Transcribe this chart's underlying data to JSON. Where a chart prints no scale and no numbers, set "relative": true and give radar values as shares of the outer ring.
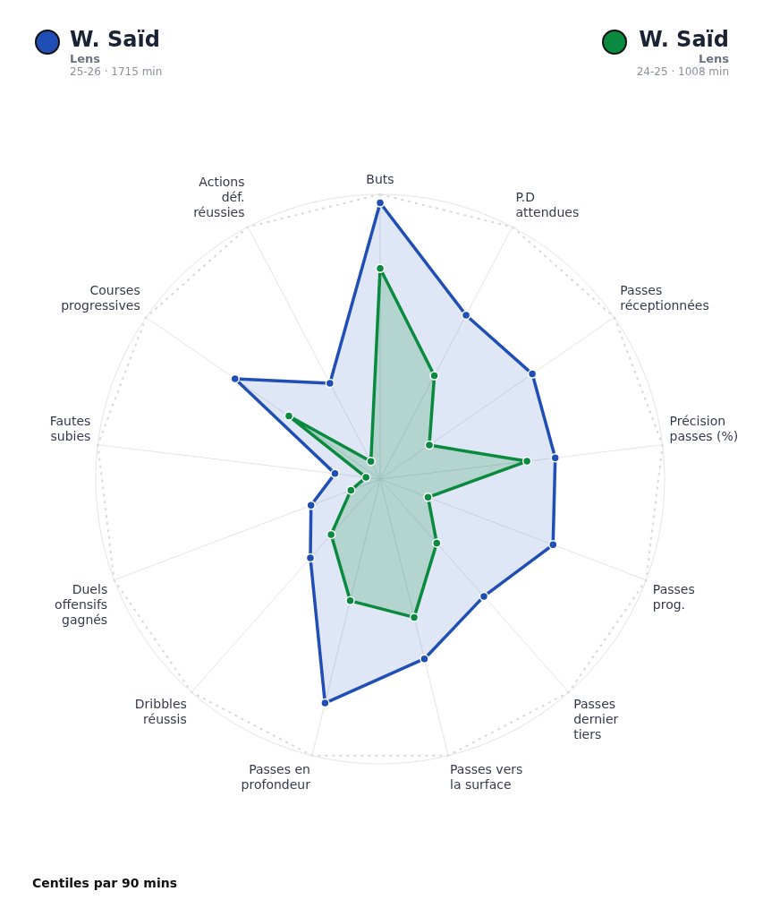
{
  "chart_data": {
    "type": "radar",
    "relative": true,
    "grid": true,
    "legend": "top",
    "marker": "circle",
    "line_style": "solid",
    "categories": [
      "Buts",
      "P.D attendues",
      "Passes réceptionnées",
      "Précision passes (%)",
      "Passes prog.",
      "Passes dernier tiers",
      "Passes vers la surface",
      "Passes en profondeur",
      "Dribbles réussis",
      "Duels offensifs gagnés",
      "Fautes subies",
      "Courses progressives",
      "Actions déf. réussies"
    ],
    "series": [
      {
        "name": "W. Saïd",
        "color": "#1f4fb5",
        "values": [
          0.97,
          0.65,
          0.65,
          0.62,
          0.65,
          0.55,
          0.65,
          0.81,
          0.37,
          0.26,
          0.16,
          0.62,
          0.38
        ]
      },
      {
        "name": "W. Saïd",
        "color": "#0a8a3e",
        "values": [
          0.74,
          0.41,
          0.21,
          0.52,
          0.18,
          0.3,
          0.5,
          0.44,
          0.26,
          0.11,
          0.05,
          0.39,
          0.07
        ]
      }
    ],
    "annotations": [
      "Lens",
      "25-26 · 1715 min",
      "Lens",
      "24-25 · 1008 min",
      "Centiles par 90 mins"
    ]
  }
}
